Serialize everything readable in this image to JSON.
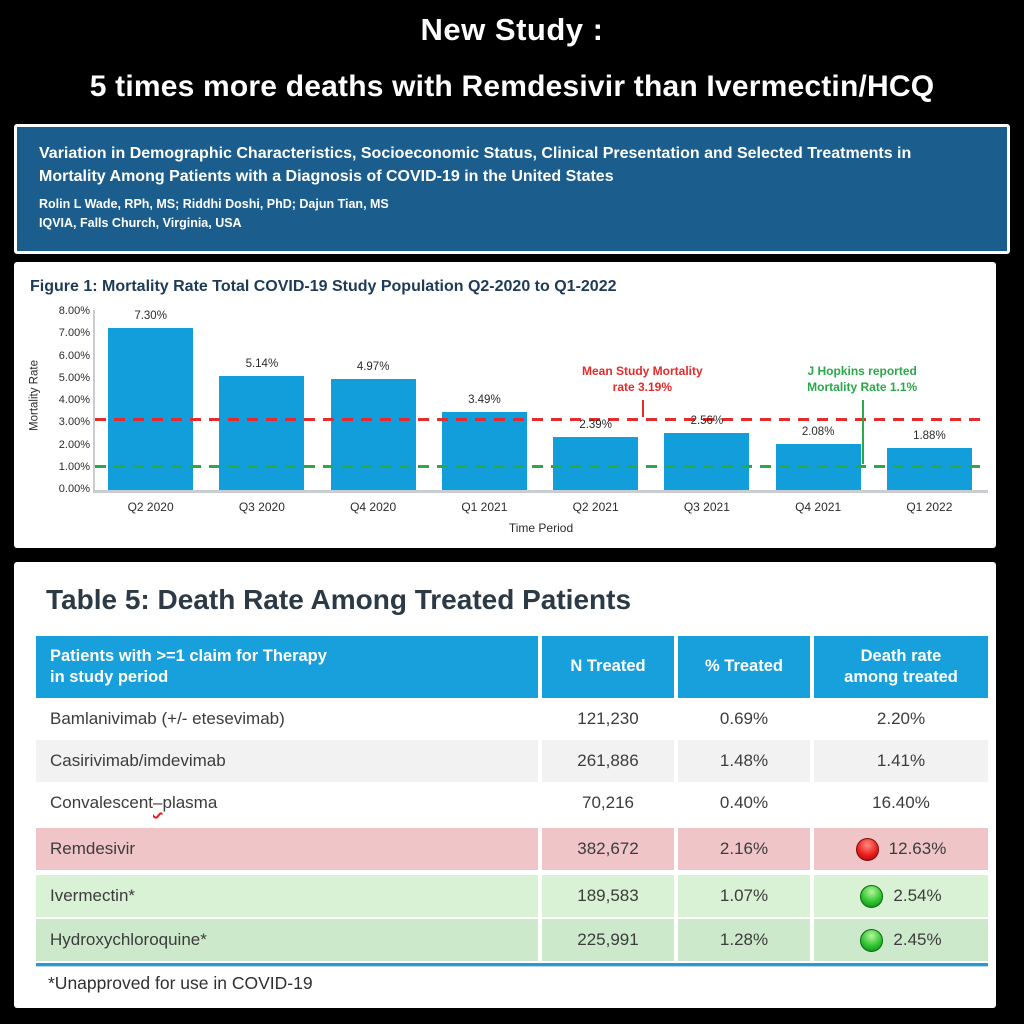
{
  "page": {
    "title_line1": "New Study :",
    "title_line2": "5 times more deaths with Remdesivir than Ivermectin/HCQ"
  },
  "study_header": {
    "bg_color": "#1b5e8e",
    "title": "Variation in Demographic Characteristics, Socioeconomic Status, Clinical Presentation and Selected Treatments in\nMortality Among Patients with a Diagnosis of COVID-19 in the United States",
    "authors": "Rolin L Wade, RPh, MS; Riddhi Doshi, PhD; Dajun Tian, MS",
    "affiliation": "IQVIA, Falls Church, Virginia, USA"
  },
  "chart_data": {
    "type": "bar",
    "title": "Figure 1: Mortality Rate Total COVID-19 Study Population Q2-2020 to Q1-2022",
    "categories": [
      "Q2 2020",
      "Q3 2020",
      "Q4 2020",
      "Q1 2021",
      "Q2 2021",
      "Q3 2021",
      "Q4 2021",
      "Q1 2022"
    ],
    "values": [
      7.3,
      5.14,
      4.97,
      3.49,
      2.39,
      2.56,
      2.08,
      1.88
    ],
    "value_labels": [
      "7.30%",
      "5.14%",
      "4.97%",
      "3.49%",
      "2.39%",
      "2.56%",
      "2.08%",
      "1.88%"
    ],
    "xlabel": "Time Period",
    "ylabel": "Mortality Rate",
    "ylim": [
      0,
      8
    ],
    "y_ticks": [
      "0.00%",
      "1.00%",
      "2.00%",
      "3.00%",
      "4.00%",
      "5.00%",
      "6.00%",
      "7.00%",
      "8.00%"
    ],
    "bar_color": "#119edb",
    "grid": false,
    "legend": false,
    "reference_lines": [
      {
        "value": 3.19,
        "color": "#e52b2b",
        "style": "dashed",
        "label": "Mean Study Mortality\nrate 3.19%"
      },
      {
        "value": 1.1,
        "color": "#2aa84a",
        "style": "dashed",
        "label": "J Hopkins reported\nMortality Rate 1.1%"
      }
    ]
  },
  "table": {
    "title": "Table 5: Death Rate Among Treated Patients",
    "header": {
      "col1": "Patients with >=1 claim for Therapy\nin study period",
      "col2": "N Treated",
      "col3": "% Treated",
      "col4": "Death rate\namong treated"
    },
    "rows": [
      {
        "name": "Bamlanivimab (+/- etesevimab)",
        "n": "121,230",
        "pct": "0.69%",
        "death_rate": "2.20%",
        "indicator": null,
        "bg": "#ffffff"
      },
      {
        "name": "Casirivimab/imdevimab",
        "n": "261,886",
        "pct": "1.48%",
        "death_rate": "1.41%",
        "indicator": null,
        "bg": "#f2f2f2"
      },
      {
        "name": "Convalescent–plasma",
        "squiggle_dash": true,
        "n": "70,216",
        "pct": "0.40%",
        "death_rate": "16.40%",
        "indicator": null,
        "bg": "#ffffff"
      },
      {
        "name": "Remdesivir",
        "n": "382,672",
        "pct": "2.16%",
        "death_rate": "12.63%",
        "indicator": "red",
        "bg": "#f0c5c8",
        "gap_before": 4
      },
      {
        "name": "Ivermectin*",
        "n": "189,583",
        "pct": "1.07%",
        "death_rate": "2.54%",
        "indicator": "green",
        "bg": "#d9f1d4",
        "gap_before": 5
      },
      {
        "name": "Hydroxychloroquine*",
        "n": "225,991",
        "pct": "1.28%",
        "death_rate": "2.45%",
        "indicator": "green",
        "bg": "#cde9cb",
        "gap_before": 2
      }
    ],
    "footnote": "*Unapproved for use in COVID-19"
  }
}
